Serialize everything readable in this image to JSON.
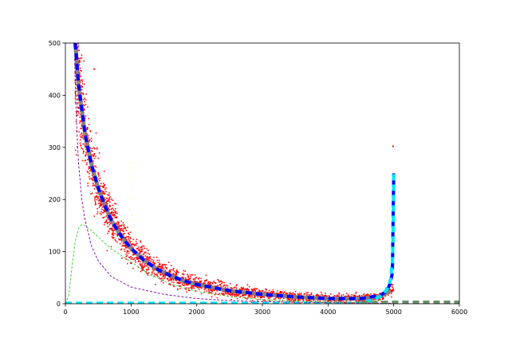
{
  "chart_data": {
    "type": "scatter",
    "title": "",
    "xlabel": "",
    "ylabel": "",
    "xlim": [
      0,
      6000
    ],
    "ylim": [
      0,
      500
    ],
    "xticks": [
      0,
      1000,
      2000,
      3000,
      4000,
      5000,
      6000
    ],
    "yticks": [
      0,
      100,
      200,
      300,
      400,
      500
    ],
    "grid": false,
    "legend": "none",
    "colors": {
      "scatter": "#ff0000",
      "faint_scatter": "#ffff99",
      "main_fit": "#808080",
      "blue_dashed": "#0000ff",
      "cyan_dashed": "#00e5ff",
      "purple_dashed": "#7b00a0",
      "green_dashed": "#33cc33",
      "gray_floor": "#6b8e6b"
    },
    "series": [
      {
        "kind": "scatter_band",
        "color": "#ff0000",
        "x_range": [
          150,
          5000
        ],
        "centerline": [
          [
            150,
            500
          ],
          [
            200,
            420
          ],
          [
            300,
            325
          ],
          [
            400,
            265
          ],
          [
            500,
            222
          ],
          [
            600,
            188
          ],
          [
            700,
            160
          ],
          [
            800,
            139
          ],
          [
            900,
            121
          ],
          [
            1000,
            106
          ],
          [
            1200,
            83
          ],
          [
            1400,
            66
          ],
          [
            1600,
            54
          ],
          [
            1800,
            44
          ],
          [
            2000,
            37
          ],
          [
            2500,
            25
          ],
          [
            3000,
            18
          ],
          [
            3500,
            13
          ],
          [
            4000,
            10
          ],
          [
            4500,
            10
          ],
          [
            4800,
            14
          ],
          [
            4950,
            25
          ]
        ],
        "outliers": [
          [
            4990,
            302
          ],
          [
            440,
            450
          ]
        ]
      },
      {
        "kind": "faint_scatter",
        "color": "#ffff99",
        "points": [
          [
            990,
            270
          ],
          [
            1000,
            240
          ],
          [
            1005,
            200
          ],
          [
            1010,
            160
          ],
          [
            1000,
            140
          ],
          [
            980,
            180
          ],
          [
            1020,
            120
          ],
          [
            995,
            100
          ],
          [
            1008,
            220
          ],
          [
            990,
            130
          ],
          [
            1015,
            170
          ],
          [
            1002,
            260
          ]
        ]
      },
      {
        "kind": "line",
        "style": "solid-thick",
        "color": "#808080",
        "points": [
          [
            150,
            500
          ],
          [
            200,
            420
          ],
          [
            300,
            325
          ],
          [
            400,
            265
          ],
          [
            500,
            222
          ],
          [
            600,
            188
          ],
          [
            700,
            160
          ],
          [
            800,
            139
          ],
          [
            900,
            121
          ],
          [
            1000,
            106
          ],
          [
            1200,
            83
          ],
          [
            1400,
            66
          ],
          [
            1600,
            54
          ],
          [
            1800,
            44
          ],
          [
            2000,
            37
          ],
          [
            2500,
            25
          ],
          [
            3000,
            18
          ],
          [
            3500,
            13
          ],
          [
            4000,
            10
          ],
          [
            4500,
            10
          ],
          [
            4800,
            14
          ],
          [
            4950,
            25
          ]
        ]
      },
      {
        "kind": "line",
        "style": "dashed-thick",
        "color": "#0000ff",
        "points": [
          [
            150,
            500
          ],
          [
            200,
            420
          ],
          [
            300,
            325
          ],
          [
            400,
            265
          ],
          [
            500,
            222
          ],
          [
            600,
            188
          ],
          [
            700,
            160
          ],
          [
            800,
            139
          ],
          [
            900,
            121
          ],
          [
            1000,
            106
          ],
          [
            1200,
            83
          ],
          [
            1400,
            66
          ],
          [
            1600,
            54
          ],
          [
            1800,
            44
          ],
          [
            2000,
            37
          ],
          [
            2500,
            25
          ],
          [
            3000,
            18
          ],
          [
            3500,
            13
          ],
          [
            4000,
            10
          ],
          [
            4500,
            10
          ],
          [
            4800,
            16
          ],
          [
            4900,
            25
          ],
          [
            4950,
            40
          ],
          [
            4980,
            60
          ],
          [
            5000,
            250
          ]
        ]
      },
      {
        "kind": "line",
        "style": "dashed-thick",
        "color": "#00e5ff",
        "points": [
          [
            0,
            1
          ],
          [
            4500,
            1
          ],
          [
            4700,
            8
          ],
          [
            4800,
            15
          ],
          [
            4900,
            28
          ],
          [
            4950,
            45
          ],
          [
            4980,
            80
          ],
          [
            4990,
            120
          ],
          [
            5000,
            250
          ]
        ]
      },
      {
        "kind": "line",
        "style": "dashed-thin",
        "color": "#7b00a0",
        "points": [
          [
            140,
            470
          ],
          [
            160,
            380
          ],
          [
            180,
            320
          ],
          [
            200,
            270
          ],
          [
            250,
            200
          ],
          [
            300,
            160
          ],
          [
            400,
            110
          ],
          [
            500,
            82
          ],
          [
            700,
            52
          ],
          [
            1000,
            32
          ],
          [
            1500,
            18
          ],
          [
            2000,
            10
          ],
          [
            2500,
            6
          ],
          [
            3000,
            4
          ],
          [
            4000,
            2
          ],
          [
            5000,
            1
          ]
        ]
      },
      {
        "kind": "line",
        "style": "dashed-thin",
        "color": "#33cc33",
        "points": [
          [
            0,
            0
          ],
          [
            50,
            15
          ],
          [
            100,
            70
          ],
          [
            150,
            120
          ],
          [
            200,
            145
          ],
          [
            250,
            152
          ],
          [
            300,
            150
          ],
          [
            400,
            140
          ],
          [
            500,
            128
          ],
          [
            700,
            105
          ],
          [
            1000,
            80
          ],
          [
            1300,
            55
          ],
          [
            1600,
            38
          ],
          [
            2000,
            24
          ],
          [
            2500,
            14
          ],
          [
            3000,
            8
          ],
          [
            3500,
            5
          ],
          [
            4000,
            3
          ],
          [
            4500,
            3
          ],
          [
            4800,
            6
          ]
        ]
      },
      {
        "kind": "line",
        "style": "dashed-thick",
        "color": "#6b8e6b",
        "points": [
          [
            4500,
            2
          ],
          [
            5000,
            3
          ],
          [
            5500,
            3
          ],
          [
            6000,
            3
          ]
        ]
      }
    ]
  }
}
